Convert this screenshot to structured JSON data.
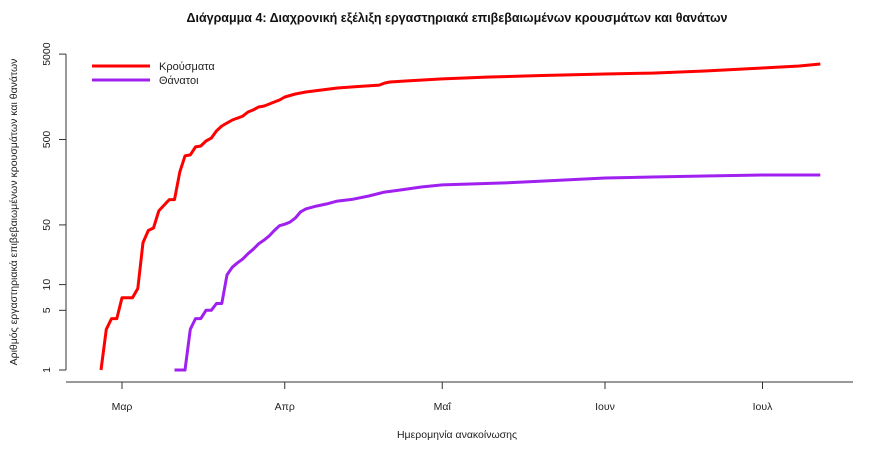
{
  "chart_data": {
    "type": "line",
    "title": "Διάγραμμα 4: Διαχρονική εξέλιξη εργαστηριακά επιβεβαιωμένων κρουσμάτων και θανάτων",
    "xlabel": "Ημερομηνία ανακοίνωσης",
    "ylabel": "Αριθμός εργαστηριακά επιβεβαιωμένων κρουσμάτων και θανάτων",
    "yscale": "log",
    "ylim": [
      1,
      5000
    ],
    "yticks": [
      1,
      5,
      10,
      50,
      500,
      5000
    ],
    "ytick_labels": [
      "1",
      "5",
      "10",
      "50",
      "500",
      "5000"
    ],
    "xticks": [
      {
        "day": 0,
        "label": "Μαρ"
      },
      {
        "day": 31,
        "label": "Απρ"
      },
      {
        "day": 61,
        "label": "Μαΐ"
      },
      {
        "day": 92,
        "label": "Ιουν"
      },
      {
        "day": 122,
        "label": "Ιουλ"
      }
    ],
    "x_unit": "days since 1 March",
    "grid": false,
    "legend_position": "top-left",
    "series": [
      {
        "name": "Κρούσματα",
        "color": "#ff0000",
        "points": [
          [
            -4,
            1
          ],
          [
            -3,
            3
          ],
          [
            -2,
            4
          ],
          [
            -1,
            4
          ],
          [
            0,
            7
          ],
          [
            2,
            7
          ],
          [
            3,
            9
          ],
          [
            4,
            31
          ],
          [
            5,
            43
          ],
          [
            6,
            46
          ],
          [
            7,
            73
          ],
          [
            8,
            85
          ],
          [
            9,
            99
          ],
          [
            10,
            99
          ],
          [
            11,
            208
          ],
          [
            12,
            321
          ],
          [
            13,
            330
          ],
          [
            14,
            410
          ],
          [
            15,
            420
          ],
          [
            16,
            480
          ],
          [
            17,
            520
          ],
          [
            18,
            630
          ],
          [
            19,
            720
          ],
          [
            20,
            780
          ],
          [
            21,
            845
          ],
          [
            22,
            890
          ],
          [
            23,
            940
          ],
          [
            24,
            1050
          ],
          [
            25,
            1110
          ],
          [
            26,
            1200
          ],
          [
            27,
            1230
          ],
          [
            28,
            1300
          ],
          [
            29,
            1375
          ],
          [
            30,
            1450
          ],
          [
            31,
            1575
          ],
          [
            33,
            1705
          ],
          [
            35,
            1800
          ],
          [
            38,
            1900
          ],
          [
            41,
            2005
          ],
          [
            45,
            2090
          ],
          [
            49,
            2170
          ],
          [
            50,
            2290
          ],
          [
            51,
            2355
          ],
          [
            54,
            2420
          ],
          [
            61,
            2560
          ],
          [
            70,
            2700
          ],
          [
            80,
            2810
          ],
          [
            92,
            2925
          ],
          [
            101,
            3000
          ],
          [
            111,
            3170
          ],
          [
            122,
            3440
          ],
          [
            129,
            3630
          ],
          [
            133,
            3830
          ]
        ]
      },
      {
        "name": "Θάνατοι",
        "color": "#a020f0",
        "points": [
          [
            10,
            1
          ],
          [
            12,
            1
          ],
          [
            13,
            3
          ],
          [
            14,
            4
          ],
          [
            15,
            4
          ],
          [
            16,
            5
          ],
          [
            17,
            5
          ],
          [
            18,
            6
          ],
          [
            19,
            6
          ],
          [
            20,
            13
          ],
          [
            21,
            16
          ],
          [
            22,
            18
          ],
          [
            23,
            20
          ],
          [
            24,
            23
          ],
          [
            25,
            26
          ],
          [
            26,
            30
          ],
          [
            27,
            33
          ],
          [
            28,
            37
          ],
          [
            29,
            43
          ],
          [
            30,
            49
          ],
          [
            31,
            51
          ],
          [
            32,
            54
          ],
          [
            33,
            60
          ],
          [
            34,
            71
          ],
          [
            35,
            77
          ],
          [
            37,
            83
          ],
          [
            39,
            88
          ],
          [
            41,
            95
          ],
          [
            44,
            100
          ],
          [
            47,
            109
          ],
          [
            50,
            121
          ],
          [
            53,
            128
          ],
          [
            57,
            139
          ],
          [
            61,
            147
          ],
          [
            67,
            151
          ],
          [
            73,
            155
          ],
          [
            80,
            163
          ],
          [
            92,
            177
          ],
          [
            101,
            182
          ],
          [
            111,
            187
          ],
          [
            122,
            192
          ],
          [
            133,
            192
          ]
        ]
      }
    ]
  }
}
